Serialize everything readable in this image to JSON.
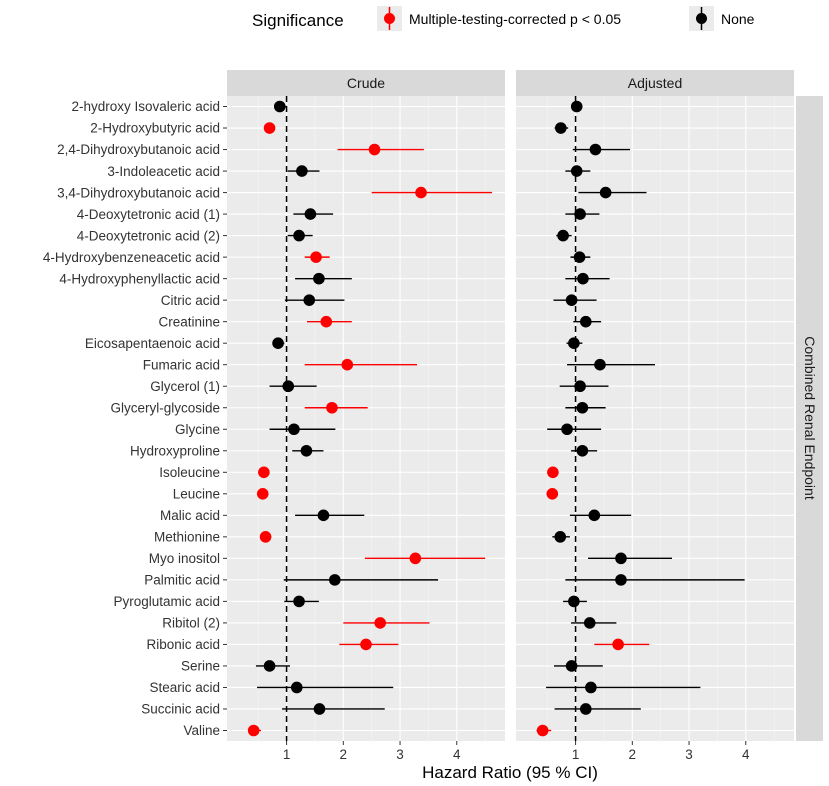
{
  "chart_data": {
    "type": "forest",
    "xlabel": "Hazard Ratio (95 % CI)",
    "strip_right": "Combined Renal Endpoint",
    "reference_line_at": 1,
    "xlim": [
      -0.05,
      4.85
    ],
    "xticks": [
      1,
      2,
      3,
      4
    ],
    "xtick_labels": [
      "1",
      "2",
      "3",
      "4"
    ],
    "legend": {
      "title": "Significance",
      "entries": [
        {
          "key": "sig",
          "label": "Multiple-testing-corrected p < 0.05",
          "color": "#ff0000"
        },
        {
          "key": "none",
          "label": "None",
          "color": "#000000"
        }
      ]
    },
    "categories": [
      "2-hydroxy Isovaleric acid",
      "2-Hydroxybutyric acid",
      "2,4-Dihydroxybutanoic acid",
      "3-Indoleacetic acid",
      "3,4-Dihydroxybutanoic acid",
      "4-Deoxytetronic acid (1)",
      "4-Deoxytetronic acid (2)",
      "4-Hydroxybenzeneacetic acid",
      "4-Hydroxyphenyllactic acid",
      "Citric acid",
      "Creatinine",
      "Eicosapentaenoic acid",
      "Fumaric acid",
      "Glycerol (1)",
      "Glyceryl-glycoside",
      "Glycine",
      "Hydroxyproline",
      "Isoleucine",
      "Leucine",
      "Malic acid",
      "Methionine",
      "Myo inositol",
      "Palmitic acid",
      "Pyroglutamic acid",
      "Ribitol (2)",
      "Ribonic acid",
      "Serine",
      "Stearic acid",
      "Succinic acid",
      "Valine"
    ],
    "panels": [
      {
        "name": "Crude",
        "points": [
          {
            "hr": 0.88,
            "lo": 0.8,
            "hi": 1.0,
            "sig": false
          },
          {
            "hr": 0.7,
            "lo": 0.62,
            "hi": 0.78,
            "sig": true
          },
          {
            "hr": 2.55,
            "lo": 1.9,
            "hi": 3.42,
            "sig": true
          },
          {
            "hr": 1.27,
            "lo": 1.02,
            "hi": 1.58,
            "sig": false
          },
          {
            "hr": 3.37,
            "lo": 2.5,
            "hi": 4.62,
            "sig": true
          },
          {
            "hr": 1.42,
            "lo": 1.12,
            "hi": 1.82,
            "sig": false
          },
          {
            "hr": 1.22,
            "lo": 1.02,
            "hi": 1.46,
            "sig": false
          },
          {
            "hr": 1.52,
            "lo": 1.32,
            "hi": 1.76,
            "sig": true
          },
          {
            "hr": 1.57,
            "lo": 1.15,
            "hi": 2.15,
            "sig": false
          },
          {
            "hr": 1.4,
            "lo": 0.97,
            "hi": 2.02,
            "sig": false
          },
          {
            "hr": 1.7,
            "lo": 1.36,
            "hi": 2.15,
            "sig": true
          },
          {
            "hr": 0.85,
            "lo": 0.76,
            "hi": 0.96,
            "sig": false
          },
          {
            "hr": 2.07,
            "lo": 1.32,
            "hi": 3.3,
            "sig": true
          },
          {
            "hr": 1.03,
            "lo": 0.7,
            "hi": 1.53,
            "sig": false
          },
          {
            "hr": 1.8,
            "lo": 1.32,
            "hi": 2.43,
            "sig": true
          },
          {
            "hr": 1.13,
            "lo": 0.7,
            "hi": 1.86,
            "sig": false
          },
          {
            "hr": 1.35,
            "lo": 1.1,
            "hi": 1.65,
            "sig": false
          },
          {
            "hr": 0.6,
            "lo": 0.52,
            "hi": 0.68,
            "sig": true
          },
          {
            "hr": 0.58,
            "lo": 0.5,
            "hi": 0.67,
            "sig": true
          },
          {
            "hr": 1.65,
            "lo": 1.15,
            "hi": 2.37,
            "sig": false
          },
          {
            "hr": 0.63,
            "lo": 0.54,
            "hi": 0.73,
            "sig": true
          },
          {
            "hr": 3.27,
            "lo": 2.38,
            "hi": 4.5,
            "sig": true
          },
          {
            "hr": 1.85,
            "lo": 0.95,
            "hi": 3.67,
            "sig": false
          },
          {
            "hr": 1.22,
            "lo": 0.96,
            "hi": 1.57,
            "sig": false
          },
          {
            "hr": 2.65,
            "lo": 2.0,
            "hi": 3.52,
            "sig": true
          },
          {
            "hr": 2.4,
            "lo": 1.93,
            "hi": 2.97,
            "sig": true
          },
          {
            "hr": 0.7,
            "lo": 0.46,
            "hi": 1.06,
            "sig": false
          },
          {
            "hr": 1.18,
            "lo": 0.48,
            "hi": 2.88,
            "sig": false
          },
          {
            "hr": 1.58,
            "lo": 0.92,
            "hi": 2.73,
            "sig": false
          },
          {
            "hr": 0.42,
            "lo": 0.33,
            "hi": 0.55,
            "sig": true
          }
        ]
      },
      {
        "name": "Adjusted",
        "points": [
          {
            "hr": 1.02,
            "lo": 0.92,
            "hi": 1.12,
            "sig": false
          },
          {
            "hr": 0.74,
            "lo": 0.63,
            "hi": 0.87,
            "sig": false
          },
          {
            "hr": 1.35,
            "lo": 0.95,
            "hi": 1.96,
            "sig": false
          },
          {
            "hr": 1.02,
            "lo": 0.82,
            "hi": 1.26,
            "sig": false
          },
          {
            "hr": 1.53,
            "lo": 1.05,
            "hi": 2.25,
            "sig": false
          },
          {
            "hr": 1.08,
            "lo": 0.82,
            "hi": 1.42,
            "sig": false
          },
          {
            "hr": 0.78,
            "lo": 0.66,
            "hi": 0.93,
            "sig": false
          },
          {
            "hr": 1.07,
            "lo": 0.91,
            "hi": 1.26,
            "sig": false
          },
          {
            "hr": 1.13,
            "lo": 0.82,
            "hi": 1.6,
            "sig": false
          },
          {
            "hr": 0.93,
            "lo": 0.61,
            "hi": 1.37,
            "sig": false
          },
          {
            "hr": 1.18,
            "lo": 0.96,
            "hi": 1.45,
            "sig": false
          },
          {
            "hr": 0.97,
            "lo": 0.84,
            "hi": 1.12,
            "sig": false
          },
          {
            "hr": 1.43,
            "lo": 0.85,
            "hi": 2.4,
            "sig": false
          },
          {
            "hr": 1.08,
            "lo": 0.72,
            "hi": 1.58,
            "sig": false
          },
          {
            "hr": 1.12,
            "lo": 0.82,
            "hi": 1.53,
            "sig": false
          },
          {
            "hr": 0.85,
            "lo": 0.5,
            "hi": 1.45,
            "sig": false
          },
          {
            "hr": 1.12,
            "lo": 0.92,
            "hi": 1.38,
            "sig": false
          },
          {
            "hr": 0.6,
            "lo": 0.52,
            "hi": 0.68,
            "sig": true
          },
          {
            "hr": 0.59,
            "lo": 0.51,
            "hi": 0.68,
            "sig": true
          },
          {
            "hr": 1.33,
            "lo": 0.9,
            "hi": 1.98,
            "sig": false
          },
          {
            "hr": 0.73,
            "lo": 0.59,
            "hi": 0.9,
            "sig": false
          },
          {
            "hr": 1.8,
            "lo": 1.22,
            "hi": 2.7,
            "sig": false
          },
          {
            "hr": 1.8,
            "lo": 0.82,
            "hi": 3.98,
            "sig": false
          },
          {
            "hr": 0.97,
            "lo": 0.78,
            "hi": 1.2,
            "sig": false
          },
          {
            "hr": 1.25,
            "lo": 0.92,
            "hi": 1.72,
            "sig": false
          },
          {
            "hr": 1.75,
            "lo": 1.33,
            "hi": 2.3,
            "sig": true
          },
          {
            "hr": 0.93,
            "lo": 0.62,
            "hi": 1.48,
            "sig": false
          },
          {
            "hr": 1.27,
            "lo": 0.48,
            "hi": 3.2,
            "sig": false
          },
          {
            "hr": 1.18,
            "lo": 0.63,
            "hi": 2.15,
            "sig": false
          },
          {
            "hr": 0.42,
            "lo": 0.31,
            "hi": 0.57,
            "sig": true
          }
        ]
      }
    ]
  }
}
